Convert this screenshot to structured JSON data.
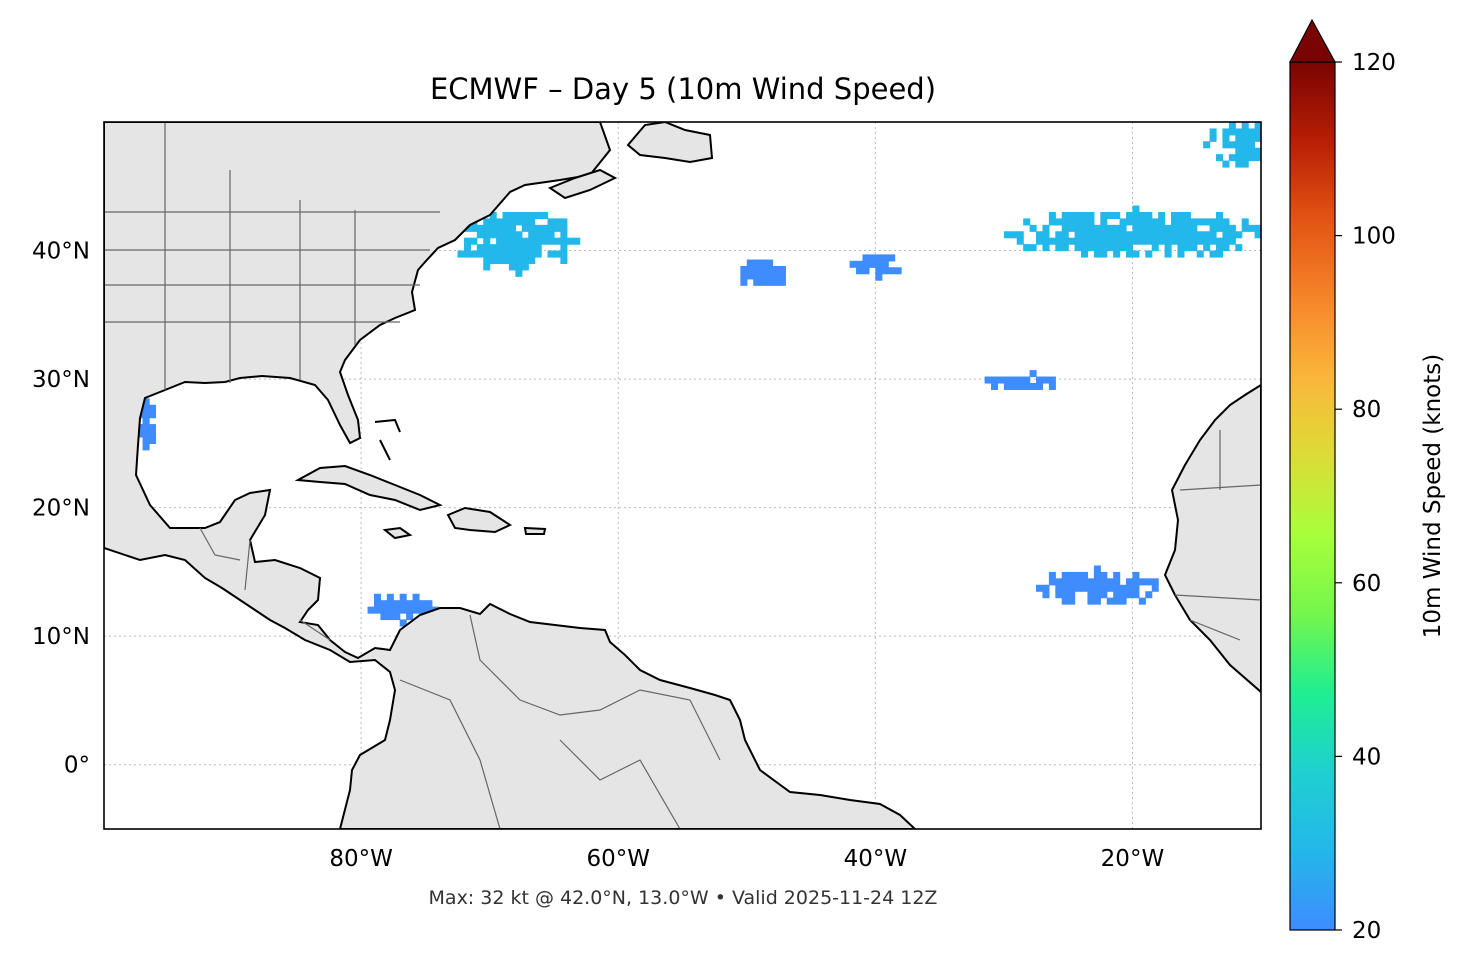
{
  "title": "ECMWF – Day 5 (10m Wind Speed)",
  "footer": "Max: 32 kt @ 42.0°N, 13.0°W • Valid 2025-11-24 12Z",
  "map": {
    "lon_range": [
      -100,
      -10
    ],
    "lat_range": [
      -5,
      50
    ],
    "gridlines": true,
    "land_color": "#e5e5e5",
    "coast_color": "#000000",
    "border_color": "#666666",
    "lon_ticks": [
      {
        "value": -80,
        "label": "80°W"
      },
      {
        "value": -60,
        "label": "60°W"
      },
      {
        "value": -40,
        "label": "40°W"
      },
      {
        "value": -20,
        "label": "20°W"
      }
    ],
    "lat_ticks": [
      {
        "value": 40,
        "label": "40°N"
      },
      {
        "value": 30,
        "label": "30°N"
      },
      {
        "value": 20,
        "label": "20°N"
      },
      {
        "value": 10,
        "label": "10°N"
      },
      {
        "value": 0,
        "label": "0°"
      }
    ]
  },
  "wind_areas": [
    {
      "name": "off-new-england",
      "center": [
        -68,
        40.5
      ],
      "radius": [
        5,
        2.5
      ],
      "value": 25
    },
    {
      "name": "west-central-atlantic",
      "center": [
        -49,
        38
      ],
      "radius": [
        2,
        1.2
      ],
      "value": 23
    },
    {
      "name": "central-atlantic",
      "center": [
        -40,
        38.5
      ],
      "radius": [
        2.5,
        0.8
      ],
      "value": 22
    },
    {
      "name": "northeast-atlantic",
      "center": [
        -20,
        41
      ],
      "radius": [
        10,
        2
      ],
      "value": 28
    },
    {
      "name": "far-northeast",
      "center": [
        -11.5,
        48
      ],
      "radius": [
        3,
        2
      ],
      "value": 30
    },
    {
      "name": "azores-area",
      "center": [
        -29,
        29.5
      ],
      "radius": [
        3,
        0.8
      ],
      "value": 22
    },
    {
      "name": "cape-verde",
      "center": [
        -23,
        13.5
      ],
      "radius": [
        5,
        1.5
      ],
      "value": 24
    },
    {
      "name": "caribbean",
      "center": [
        -77,
        12
      ],
      "radius": [
        3,
        1.2
      ],
      "value": 23
    },
    {
      "name": "texas-coast",
      "center": [
        -97,
        26.5
      ],
      "radius": [
        1,
        2
      ],
      "value": 24
    }
  ],
  "colorbar": {
    "label": "10m Wind Speed (knots)",
    "min": 20,
    "max": 120,
    "extend": "max",
    "ticks": [
      20,
      40,
      60,
      80,
      100,
      120
    ],
    "stops": [
      "#3e8cff",
      "#23b7ea",
      "#1ed0d0",
      "#1fee92",
      "#74f64d",
      "#a7ff3a",
      "#dcdc36",
      "#fbb63b",
      "#f6852a",
      "#e35413",
      "#b71e04",
      "#7a0403"
    ]
  }
}
